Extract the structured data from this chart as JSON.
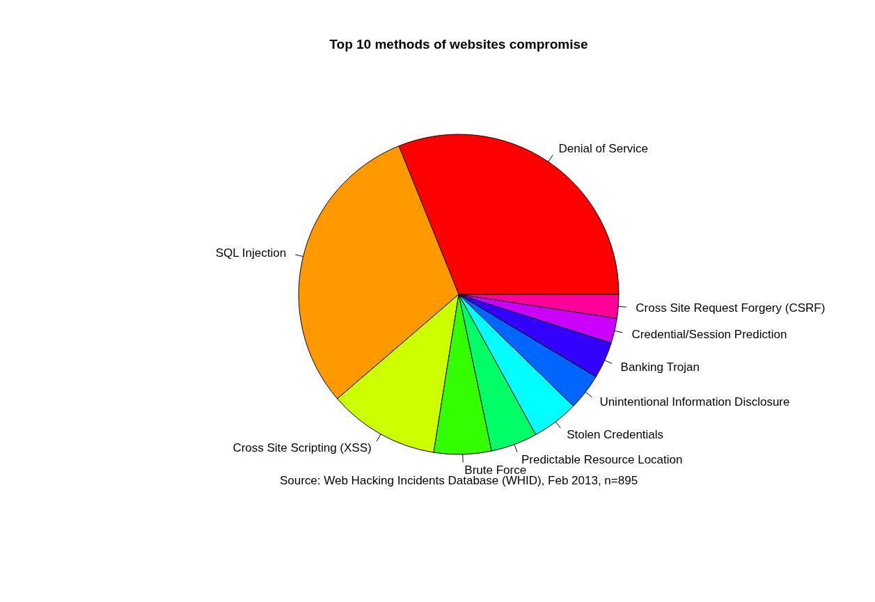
{
  "chart_data": {
    "type": "pie",
    "title": "Top 10 methods of websites compromise",
    "categories": [
      "Denial of Service",
      "SQL Injection",
      "Cross Site Scripting (XSS)",
      "Brute Force",
      "Predictable Resource Location",
      "Stolen Credentials",
      "Unintentional Information Disclosure",
      "Banking Trojan",
      "Credential/Session Prediction",
      "Cross Site Request Forgery (CSRF)"
    ],
    "values": [
      31.1,
      30.2,
      11.2,
      5.8,
      4.7,
      4.7,
      3.7,
      3.7,
      2.5,
      2.4
    ],
    "colors": [
      "#ff0000",
      "#ff9900",
      "#ccff00",
      "#33ff00",
      "#00ff66",
      "#00ffff",
      "#0066ff",
      "#3300ff",
      "#cc00ff",
      "#ff0099"
    ],
    "annotations": [
      "Source: Web Hacking Incidents Database (WHID), Feb 2013, n=895"
    ]
  }
}
